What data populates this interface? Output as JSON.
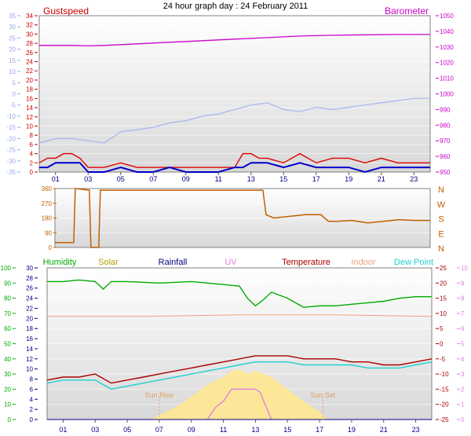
{
  "title": "24 hour graph day : 24 February 2011",
  "colors": {
    "gust": "#e00000",
    "wind": "#0000cc",
    "baro": "#cc00cc",
    "baro_axis": "#cc00cc",
    "left_axis": "#9aa8e8",
    "gust_axis": "#cc0000",
    "dir": "#c06000",
    "hum": "#00aa00",
    "solar": "#b8a000",
    "rain": "#000088",
    "uv": "#e080e0",
    "temp": "#aa0000",
    "indoor": "#f0a080",
    "dew": "#20d0d0",
    "sunfill": "#ffe890"
  },
  "chart_data": [
    {
      "type": "line",
      "name": "wind",
      "title": "24 hour graph day : 24 February 2011",
      "x_ticks": [
        "01",
        "03",
        "05",
        "07",
        "09",
        "11",
        "13",
        "15",
        "17",
        "19",
        "21",
        "23"
      ],
      "x_range_hours": [
        0,
        24
      ],
      "legend_left": "Gustspeed",
      "legend_right": "Barometer",
      "gust_axis": {
        "range": [
          0,
          34
        ],
        "ticks": [
          "34",
          "32",
          "30",
          "28",
          "26",
          "24",
          "22",
          "20",
          "18",
          "16",
          "14",
          "12",
          "10",
          "8",
          "6",
          "4",
          "2",
          "0"
        ]
      },
      "left_temp_axis": {
        "range": [
          -35,
          35
        ],
        "ticks": [
          "35",
          "30",
          "25",
          "20",
          "15",
          "10",
          "5",
          "0",
          "-5",
          "-10",
          "-15",
          "-20",
          "-25",
          "-30",
          "-35"
        ]
      },
      "baro_axis": {
        "range": [
          950,
          1050
        ],
        "ticks": [
          "1050",
          "1040",
          "1030",
          "1020",
          "1010",
          "1000",
          "990",
          "980",
          "970",
          "960",
          "950"
        ]
      },
      "series": [
        {
          "name": "Barometer",
          "axis": "baro",
          "x": [
            0,
            1,
            2,
            3,
            4,
            6,
            8,
            10,
            12,
            14,
            16,
            18,
            20,
            22,
            24
          ],
          "y": [
            1031,
            1031,
            1031,
            1030.7,
            1031,
            1032,
            1033,
            1034,
            1035,
            1036,
            1037,
            1037.5,
            1037.8,
            1038,
            1038
          ]
        },
        {
          "name": "Gustspeed",
          "axis": "gust",
          "x": [
            0,
            0.5,
            1,
            1.5,
            2,
            2.5,
            3,
            3.5,
            4,
            5,
            6,
            7,
            8,
            9,
            10,
            11,
            12,
            12.5,
            13,
            13.5,
            14,
            15,
            16,
            17,
            18,
            19,
            20,
            21,
            22,
            23,
            24
          ],
          "y": [
            2,
            3,
            3,
            4,
            4,
            3,
            1,
            1,
            1,
            2,
            1,
            1,
            1,
            1,
            1,
            1,
            1,
            4,
            4,
            3,
            3,
            2,
            4,
            2,
            3,
            3,
            2,
            3,
            2,
            2,
            2
          ]
        },
        {
          "name": "Windspeed",
          "axis": "gust",
          "x": [
            0,
            0.5,
            1,
            1.5,
            2,
            2.5,
            3,
            3.5,
            4,
            5,
            6,
            7,
            8,
            9,
            10,
            11,
            12,
            12.5,
            13,
            13.5,
            14,
            15,
            16,
            17,
            18,
            19,
            20,
            21,
            22,
            23,
            24
          ],
          "y": [
            1,
            1,
            2,
            2,
            2,
            2,
            0,
            0,
            0,
            1,
            0,
            0,
            1,
            0,
            0,
            0,
            1,
            1,
            2,
            2,
            2,
            1,
            2,
            1,
            1,
            1,
            0,
            1,
            1,
            1,
            1
          ]
        },
        {
          "name": "Temperature (left axis)",
          "axis": "left",
          "x": [
            0,
            1,
            2,
            3,
            4,
            5,
            6,
            7,
            8,
            9,
            10,
            11,
            12,
            13,
            14,
            15,
            16,
            17,
            18,
            19,
            20,
            21,
            22,
            23,
            24
          ],
          "y": [
            -22,
            -20,
            -20,
            -21,
            -22,
            -17,
            -16,
            -15,
            -13,
            -12,
            -10,
            -9,
            -7,
            -5,
            -4,
            -7,
            -8,
            -6,
            -7,
            -6,
            -5,
            -4,
            -3,
            -2,
            -2
          ]
        }
      ]
    },
    {
      "type": "line",
      "name": "wind-direction",
      "y_ticks": [
        "360",
        "270",
        "180",
        "90",
        "0"
      ],
      "compass": [
        "N",
        "W",
        "S",
        "E",
        "N"
      ],
      "y_range": [
        0,
        360
      ],
      "series": [
        {
          "name": "Direction",
          "x": [
            0,
            1.2,
            1.3,
            2.2,
            2.3,
            2.8,
            2.9,
            3.0,
            6,
            9,
            12,
            13.3,
            13.5,
            14,
            15,
            16,
            17,
            17.5,
            18,
            19,
            20,
            21,
            22,
            23,
            24
          ],
          "y": [
            30,
            30,
            360,
            350,
            0,
            0,
            350,
            350,
            350,
            350,
            350,
            350,
            200,
            180,
            190,
            200,
            200,
            160,
            160,
            165,
            150,
            160,
            170,
            165,
            165
          ]
        }
      ]
    },
    {
      "type": "line",
      "name": "weather",
      "legend": [
        "Humidity",
        "Solar",
        "Rainfall",
        "UV",
        "Temperature",
        "Indoor",
        "Dew Point"
      ],
      "humidity_axis": {
        "range": [
          0,
          100
        ],
        "ticks": [
          "100",
          "90",
          "80",
          "70",
          "60",
          "50",
          "40",
          "30",
          "20",
          "10",
          "0"
        ]
      },
      "rain_axis": {
        "range": [
          0,
          30
        ],
        "ticks": [
          "30",
          "28",
          "26",
          "24",
          "22",
          "20",
          "18",
          "16",
          "14",
          "12",
          "10",
          "8",
          "6",
          "4",
          "2",
          "0"
        ]
      },
      "temp_axis": {
        "range": [
          -25,
          25
        ],
        "ticks": [
          "25",
          "20",
          "15",
          "10",
          "5",
          "0",
          "-5",
          "-10",
          "-15",
          "-20",
          "-25"
        ]
      },
      "uv_axis": {
        "range": [
          0,
          10
        ],
        "ticks": [
          "10",
          "9",
          "8",
          "7",
          "6",
          "5",
          "4",
          "3",
          "2",
          "1",
          "0"
        ]
      },
      "annotations": [
        "Sun Rise",
        "Sun Set"
      ],
      "sunrise_hour": 7.0,
      "sunset_hour": 17.2,
      "series": [
        {
          "name": "Humidity",
          "axis": "humidity",
          "x": [
            0,
            1,
            2,
            3,
            3.5,
            4,
            5,
            7,
            9,
            10,
            11,
            12,
            12.5,
            13,
            13.5,
            14,
            15,
            16,
            17,
            18,
            19,
            20,
            21,
            22,
            23,
            24
          ],
          "y": [
            91,
            91,
            92,
            91,
            86,
            91,
            91,
            90,
            91,
            90,
            89,
            88,
            80,
            75,
            79,
            84,
            80,
            74,
            75,
            75,
            76,
            77,
            78,
            80,
            81,
            81
          ]
        },
        {
          "name": "Temperature",
          "axis": "temp",
          "x": [
            0,
            1,
            2,
            3,
            4,
            5,
            6,
            7,
            8,
            9,
            10,
            11,
            12,
            13,
            14,
            15,
            16,
            17,
            18,
            19,
            20,
            21,
            22,
            23,
            24
          ],
          "y": [
            -12,
            -11,
            -11,
            -10,
            -13,
            -12,
            -11,
            -10,
            -9,
            -8,
            -7,
            -6,
            -5,
            -4,
            -4,
            -4,
            -5,
            -5,
            -5,
            -6,
            -6,
            -7,
            -7,
            -6,
            -5
          ]
        },
        {
          "name": "Indoor",
          "axis": "temp",
          "x": [
            0,
            6,
            12,
            18,
            24
          ],
          "y": [
            9,
            9,
            9.5,
            9.5,
            9
          ]
        },
        {
          "name": "Dew Point",
          "axis": "temp",
          "x": [
            0,
            1,
            2,
            3,
            4,
            5,
            6,
            7,
            8,
            9,
            10,
            11,
            12,
            13,
            14,
            15,
            16,
            17,
            18,
            19,
            20,
            21,
            22,
            23,
            24
          ],
          "y": [
            -13,
            -12,
            -12,
            -12,
            -15,
            -14,
            -13,
            -12,
            -11,
            -10,
            -9,
            -8,
            -7,
            -6,
            -6,
            -6,
            -7,
            -7,
            -7,
            -7,
            -8,
            -8,
            -8,
            -7,
            -6
          ]
        },
        {
          "name": "Solar",
          "axis": "uv",
          "x": [
            6.5,
            7,
            8,
            9,
            10,
            11,
            11.5,
            12,
            12.5,
            13,
            13.5,
            14,
            15,
            16,
            17,
            17.5
          ],
          "y": [
            0,
            0.3,
            0.8,
            1.5,
            2.3,
            2.8,
            3.2,
            3.3,
            3.0,
            3.2,
            3.0,
            2.8,
            2.0,
            1.2,
            0.5,
            0
          ]
        },
        {
          "name": "UV",
          "axis": "uv",
          "x": [
            10,
            10.5,
            11,
            11.5,
            12,
            12.5,
            13,
            13.3,
            13.6,
            14
          ],
          "y": [
            0,
            0.8,
            1.2,
            2,
            2,
            2,
            2,
            1.8,
            1.0,
            0
          ]
        },
        {
          "name": "Rainfall",
          "axis": "rain",
          "x": [
            0,
            24
          ],
          "y": [
            0,
            0
          ]
        }
      ]
    }
  ]
}
